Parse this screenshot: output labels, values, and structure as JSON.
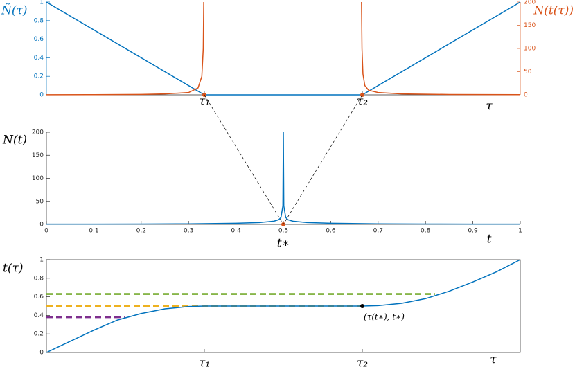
{
  "chart_data": [
    {
      "type": "line",
      "ylabel": "Ñ(τ)",
      "y2label": "N(t(τ))",
      "xlabel": "τ",
      "ylabel_color": "#0072bd",
      "y2label_color": "#d95319",
      "xlim": [
        0,
        1
      ],
      "ylim": [
        0,
        1
      ],
      "y2lim": [
        0,
        200
      ],
      "xticks": [
        {
          "value": 0.3333,
          "label": "τ₁"
        },
        {
          "value": 0.6667,
          "label": "τ₂"
        }
      ],
      "yticks": [
        0,
        0.2,
        0.4,
        0.6,
        0.8,
        1
      ],
      "y2ticks": [
        0,
        50,
        100,
        150,
        200
      ],
      "series": [
        {
          "color": "#0072bd",
          "x": [
            0,
            0.3333,
            0.6667,
            1
          ],
          "values": [
            1,
            0,
            0,
            1
          ]
        },
        {
          "color": "#d95319",
          "axis": "y2",
          "x": [
            0,
            0.1,
            0.2,
            0.25,
            0.3,
            0.32,
            0.328,
            0.331,
            0.332,
            0.5,
            0.665,
            0.666,
            0.668,
            0.672,
            0.68,
            0.7,
            0.75,
            0.85,
            1
          ],
          "values": [
            0.2,
            0.4,
            1,
            2,
            5,
            15,
            40,
            100,
            200,
            null,
            200,
            100,
            45,
            20,
            10,
            5,
            2,
            0.8,
            0.3
          ]
        },
        {
          "type": "scatter",
          "color": "#d95319",
          "x": [
            0.3333,
            0.6667
          ],
          "values": [
            0,
            0
          ]
        }
      ]
    },
    {
      "type": "line",
      "ylabel": "N(t)",
      "xlabel": "t",
      "xlim": [
        0,
        1
      ],
      "ylim": [
        0,
        200
      ],
      "xticks": [
        0,
        0.1,
        0.2,
        0.3,
        0.4,
        0.5,
        0.6,
        0.7,
        0.8,
        0.9,
        1
      ],
      "yticks": [
        0,
        50,
        100,
        150,
        200
      ],
      "annotations": [
        {
          "text": "t∗",
          "x": 0.5
        }
      ],
      "series": [
        {
          "color": "#0072bd",
          "x": [
            0,
            0.1,
            0.2,
            0.3,
            0.4,
            0.45,
            0.48,
            0.49,
            0.495,
            0.499,
            0.5,
            0.501,
            0.505,
            0.51,
            0.52,
            0.55,
            0.6,
            0.7,
            0.8,
            0.9,
            1
          ],
          "values": [
            0.5,
            0.6,
            0.8,
            1.2,
            2.5,
            4,
            7,
            10,
            15,
            40,
            200,
            40,
            15,
            10,
            7,
            4,
            2.5,
            1.2,
            0.8,
            0.6,
            0.5
          ]
        },
        {
          "type": "scatter",
          "color": "#d95319",
          "x": [
            0.5
          ],
          "values": [
            0
          ]
        }
      ]
    },
    {
      "type": "line",
      "ylabel": "t(τ)",
      "xlabel": "τ",
      "xlim": [
        0,
        1
      ],
      "ylim": [
        0,
        1
      ],
      "xticks": [
        {
          "value": 0.3333,
          "label": "τ₁"
        },
        {
          "value": 0.6667,
          "label": "τ₂"
        }
      ],
      "yticks": [
        0,
        0.2,
        0.4,
        0.6,
        0.8,
        1
      ],
      "hlines": [
        {
          "color": "#77ac30",
          "y": 0.63,
          "xmax": 0.82
        },
        {
          "color": "#edb120",
          "y": 0.5,
          "xmax": 0.6667
        },
        {
          "color": "#7e2f8e",
          "y": 0.38,
          "xmax": 0.165
        }
      ],
      "annotations": [
        {
          "text": "(τ(t∗), t∗)",
          "x": 0.6667,
          "y": 0.5
        }
      ],
      "series": [
        {
          "color": "#0072bd",
          "x": [
            0,
            0.05,
            0.1,
            0.15,
            0.2,
            0.25,
            0.3,
            0.3333,
            0.6667,
            0.7,
            0.75,
            0.8,
            0.85,
            0.9,
            0.95,
            1
          ],
          "values": [
            0,
            0.12,
            0.24,
            0.35,
            0.42,
            0.47,
            0.495,
            0.5,
            0.5,
            0.505,
            0.53,
            0.58,
            0.66,
            0.76,
            0.87,
            1
          ]
        },
        {
          "type": "scatter",
          "color": "#000000",
          "x": [
            0.6667
          ],
          "values": [
            0.5
          ]
        }
      ]
    }
  ]
}
